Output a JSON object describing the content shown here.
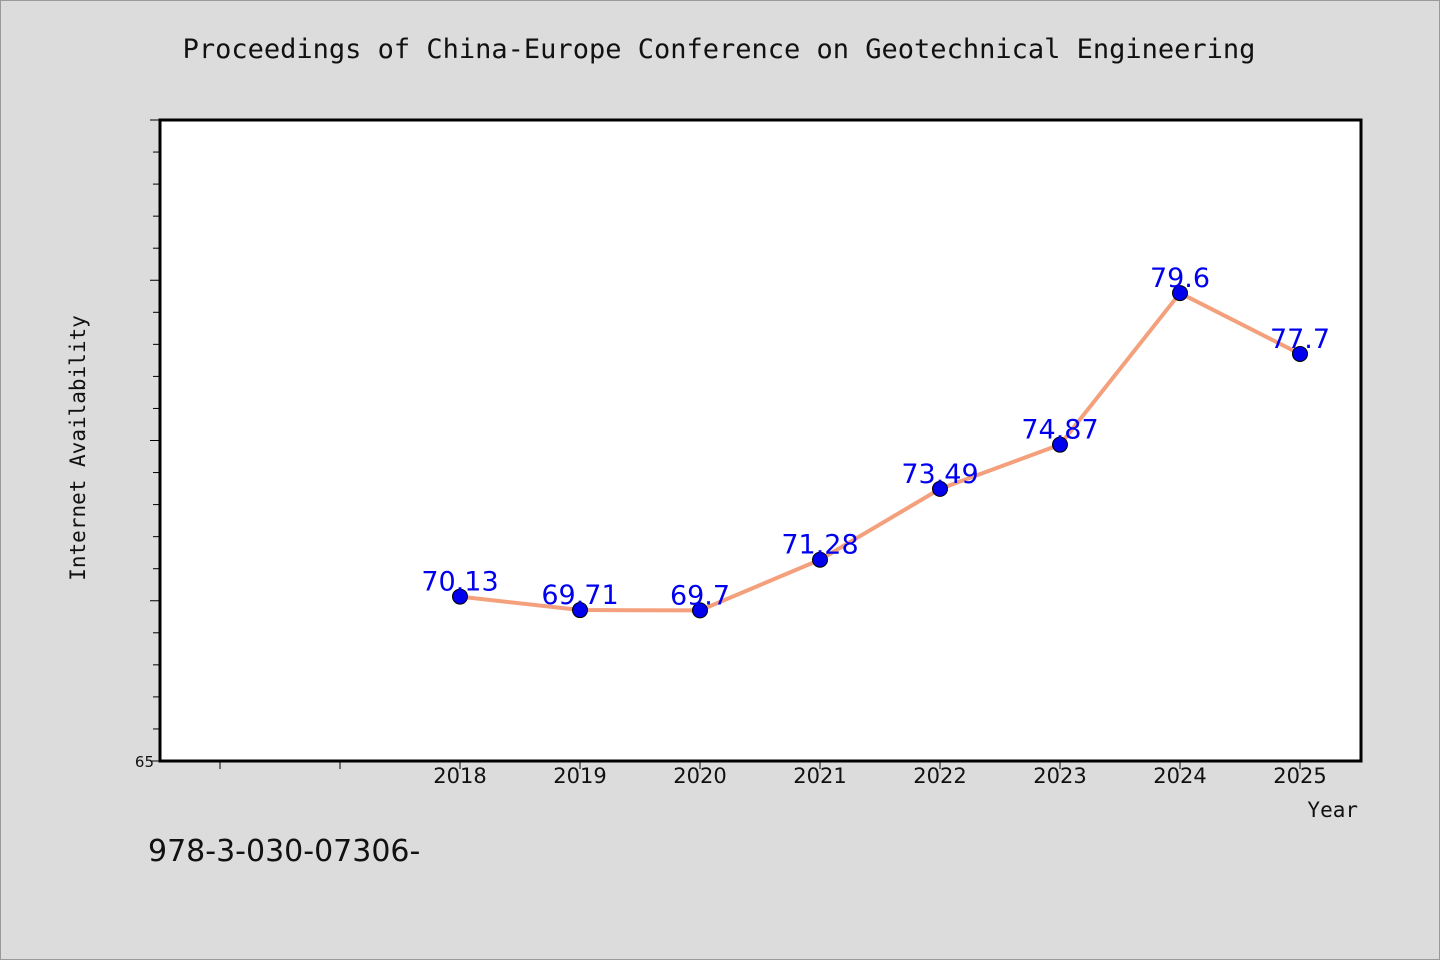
{
  "chart_data": {
    "type": "line",
    "title": "Proceedings of China-Europe Conference on Geotechnical Engineering",
    "xlabel": "Year",
    "ylabel": "Internet Availability",
    "categories": [
      "2018",
      "2019",
      "2020",
      "2021",
      "2022",
      "2023",
      "2024",
      "2025"
    ],
    "series": [
      {
        "values": [
          70.13,
          69.71,
          69.7,
          71.28,
          73.49,
          74.87,
          79.6,
          77.7
        ],
        "data_labels": [
          "70.13",
          "69.71",
          "69.7",
          "71.28",
          "73.49",
          "74.87",
          "79.6",
          "77.7"
        ]
      }
    ],
    "ylim": [
      65,
      85
    ],
    "y_tick_labels": [
      "65"
    ],
    "grid": false,
    "colors": {
      "line": "#f4a07c",
      "marker": "#0000ee",
      "label": "#0000ee"
    }
  },
  "footer": {
    "isbn": "978-3-030-07306-"
  }
}
